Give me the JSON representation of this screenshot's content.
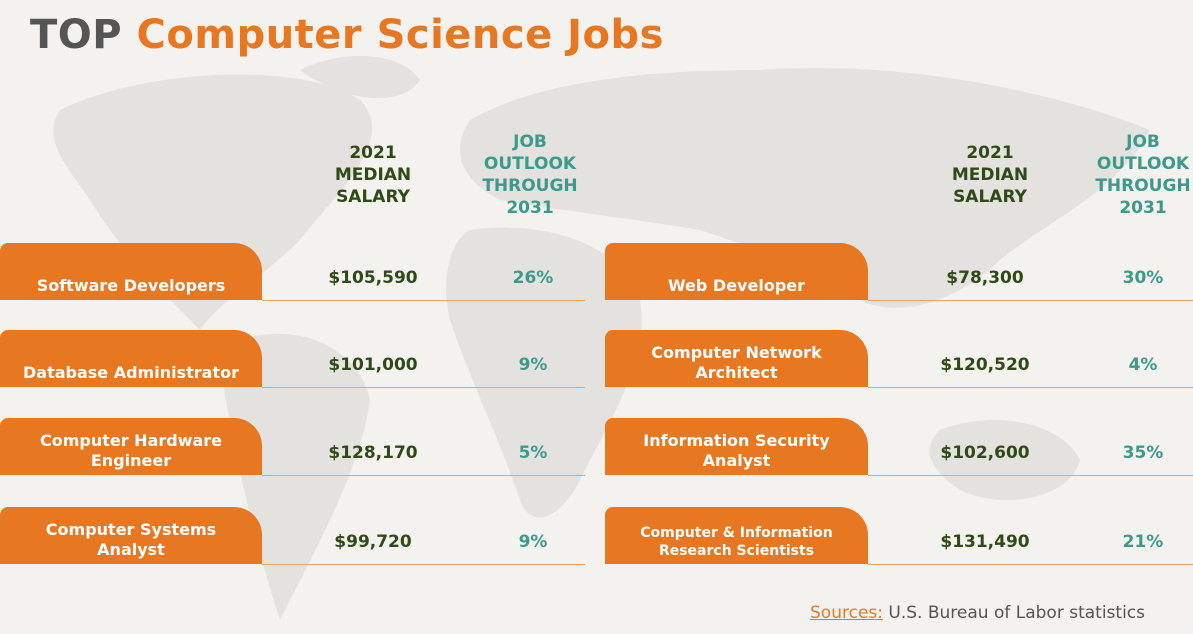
{
  "header": {
    "title_lead": "TOP",
    "title_rest": "Computer Science Jobs"
  },
  "columns": {
    "salary": "2021 MEDIAN SALARY",
    "outlook": "JOB OUTLOOK THROUGH 2031"
  },
  "jobs_left": [
    {
      "title": "Software Developers",
      "salary": "$105,590",
      "outlook": "26%"
    },
    {
      "title": "Database Administrator",
      "salary": "$101,000",
      "outlook": "9%"
    },
    {
      "title": "Computer Hardware Engineer",
      "salary": "$128,170",
      "outlook": "5%"
    },
    {
      "title": "Computer Systems Analyst",
      "salary": "$99,720",
      "outlook": "9%"
    }
  ],
  "jobs_right": [
    {
      "title": "Web Developer",
      "salary": "$78,300",
      "outlook": "30%"
    },
    {
      "title": "Computer Network Architect",
      "salary": "$120,520",
      "outlook": "4%"
    },
    {
      "title": "Information Security Analyst",
      "salary": "$102,600",
      "outlook": "35%"
    },
    {
      "title": "Computer & Information Research Scientists",
      "salary": "$131,490",
      "outlook": "21%"
    }
  ],
  "footer": {
    "source_label": "Sources:",
    "source": "U.S. Bureau of Labor statistics"
  }
}
